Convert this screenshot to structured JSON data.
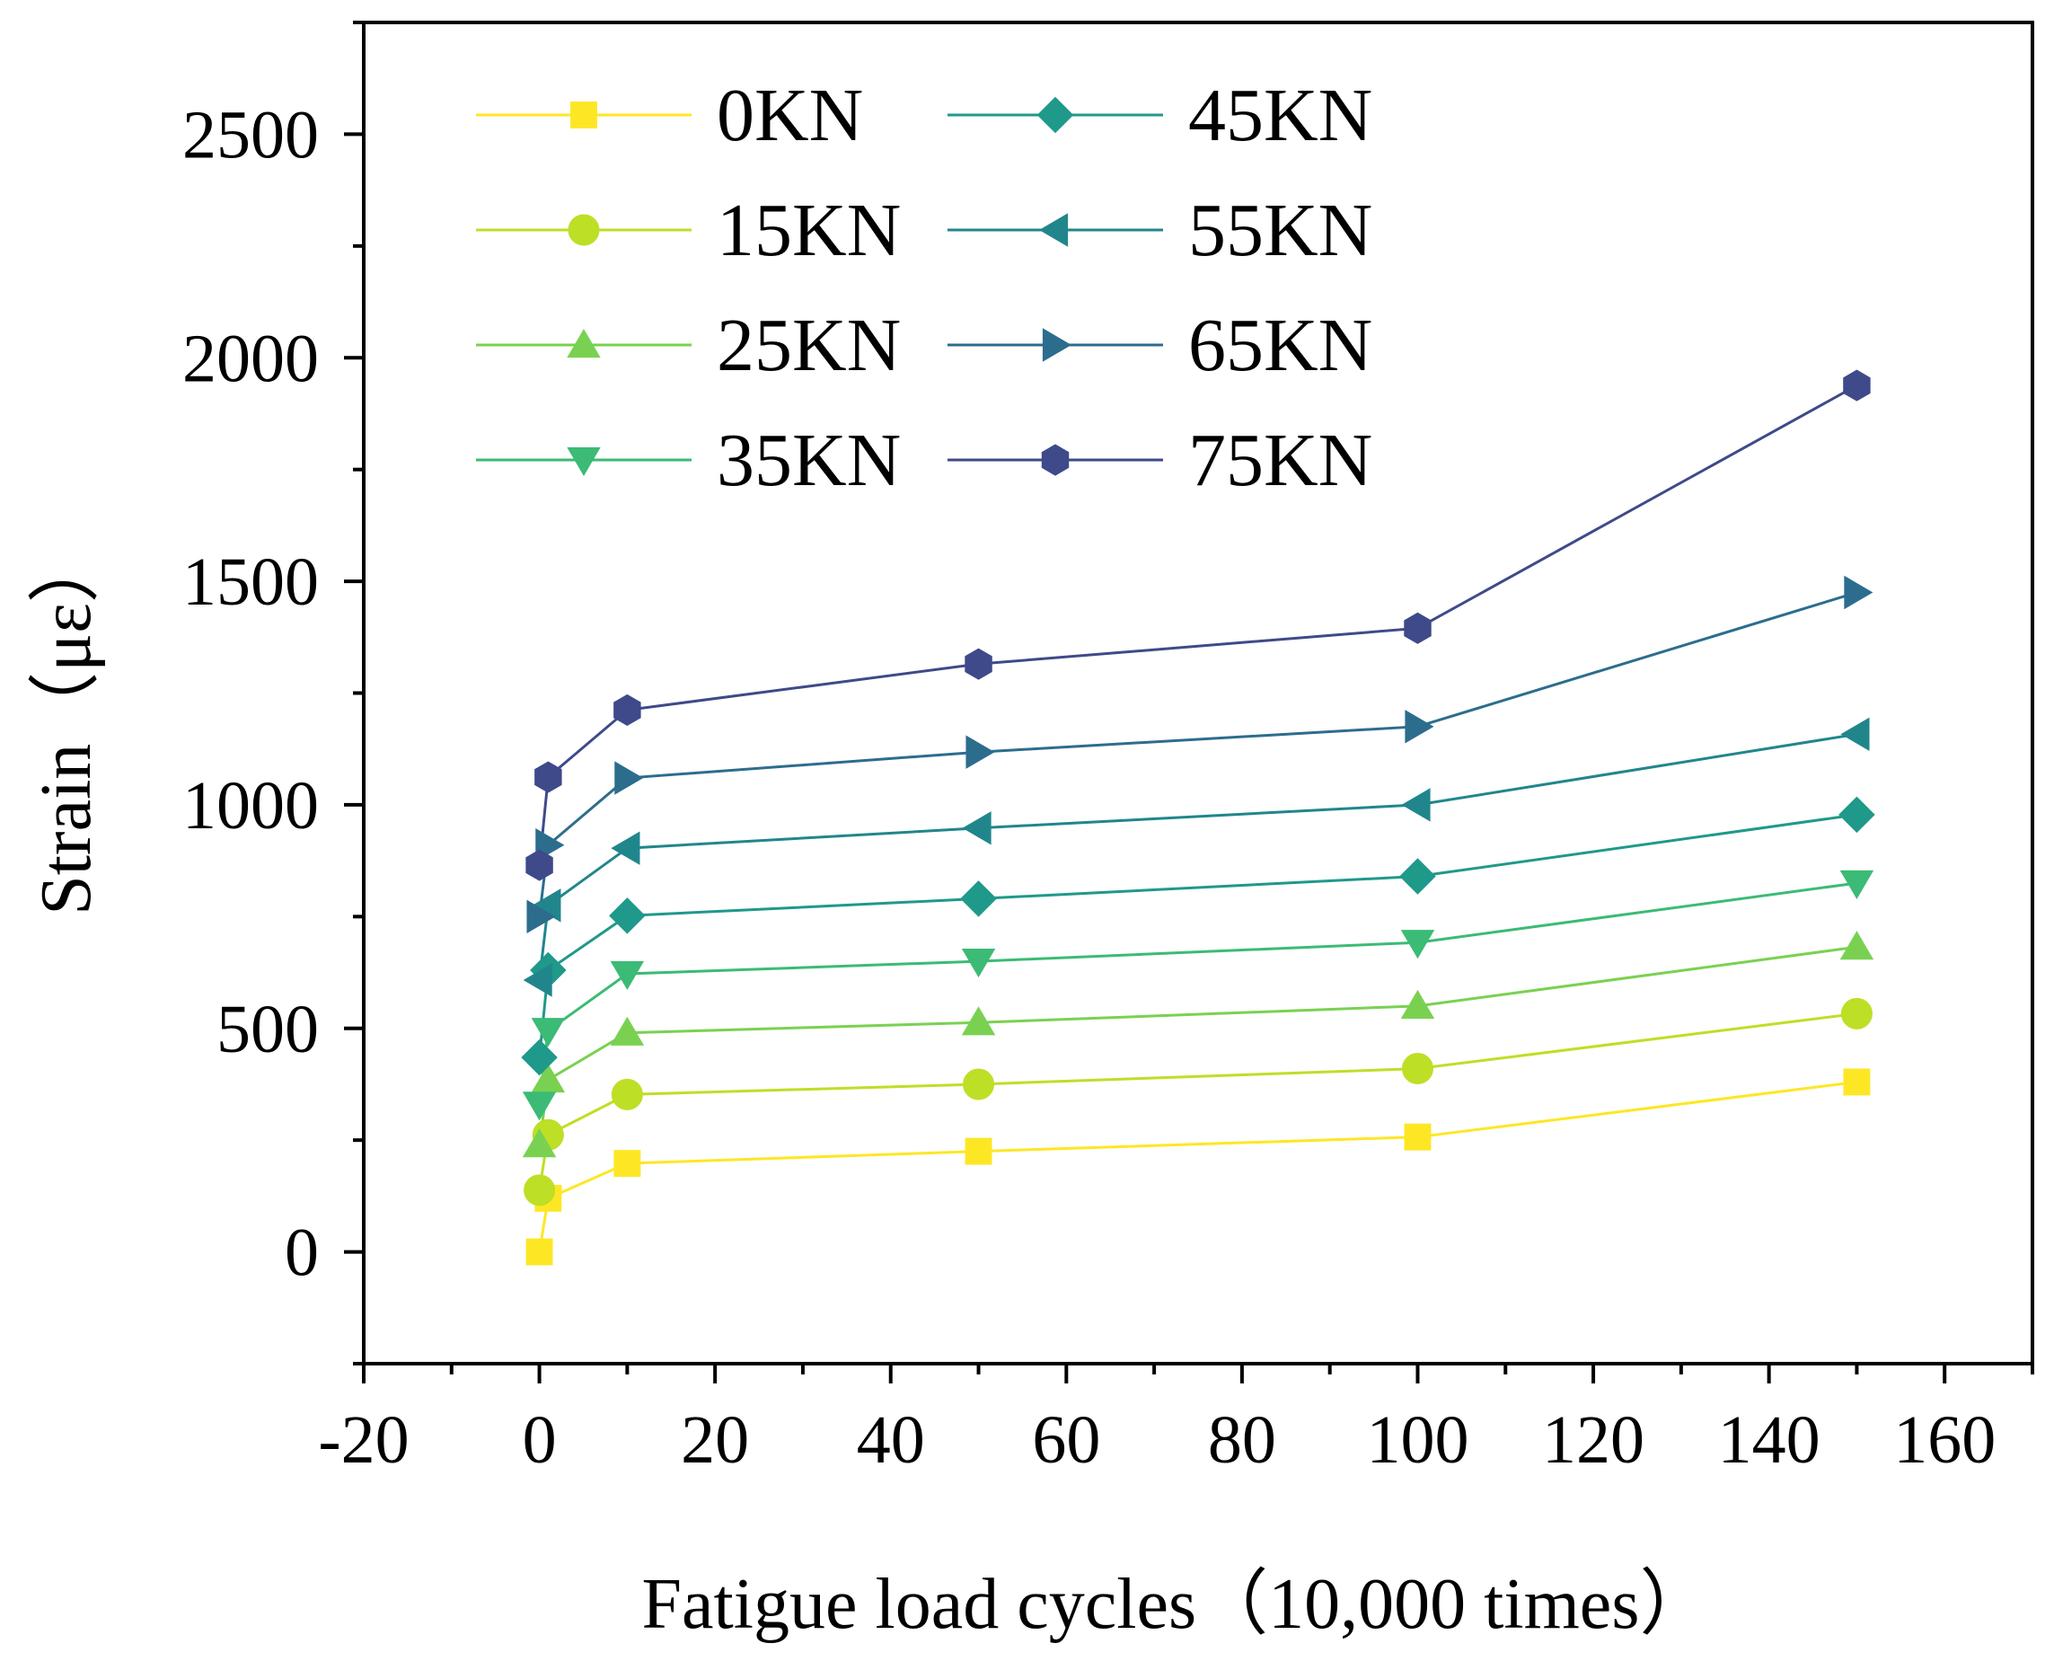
{
  "chart_data": {
    "type": "line",
    "xlabel": "Fatigue load cycles（10,000 times）",
    "ylabel": "Strain（με）",
    "xlim": [
      -20,
      170
    ],
    "ylim": [
      -250,
      2750
    ],
    "xticks": [
      -20,
      0,
      20,
      40,
      60,
      80,
      100,
      120,
      140,
      160
    ],
    "yticks": [
      0,
      500,
      1000,
      1500,
      2000,
      2500
    ],
    "x": [
      0,
      1,
      10,
      50,
      100,
      150
    ],
    "grid": false,
    "legend": "top-left, two columns",
    "series": [
      {
        "name": "0KN",
        "color": "#FDE725",
        "marker": "square",
        "values": [
          0,
          120,
          198,
          225,
          257,
          380
        ]
      },
      {
        "name": "15KN",
        "color": "#BDDF26",
        "marker": "circle",
        "values": [
          138,
          262,
          352,
          375,
          410,
          533
        ]
      },
      {
        "name": "25KN",
        "color": "#7AD151",
        "marker": "triangle-up",
        "values": [
          240,
          385,
          490,
          513,
          550,
          682
        ]
      },
      {
        "name": "35KN",
        "color": "#3BBB75",
        "marker": "triangle-down",
        "values": [
          330,
          495,
          622,
          650,
          692,
          825
        ]
      },
      {
        "name": "45KN",
        "color": "#1F998A",
        "marker": "diamond",
        "values": [
          435,
          630,
          752,
          790,
          840,
          978
        ]
      },
      {
        "name": "55KN",
        "color": "#21868C",
        "marker": "triangle-left",
        "values": [
          608,
          775,
          903,
          948,
          1000,
          1158
        ]
      },
      {
        "name": "65KN",
        "color": "#2C6D8E",
        "marker": "triangle-right",
        "values": [
          750,
          910,
          1060,
          1118,
          1175,
          1475
        ]
      },
      {
        "name": "75KN",
        "color": "#3E4A89",
        "marker": "hexagon",
        "values": [
          865,
          1062,
          1212,
          1315,
          1395,
          1938
        ]
      }
    ]
  }
}
